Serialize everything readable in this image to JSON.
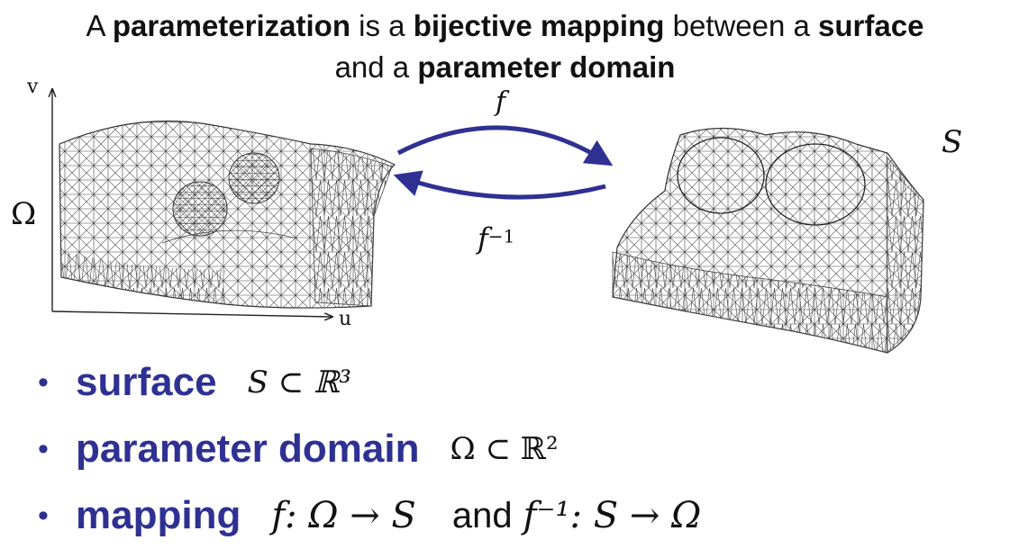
{
  "title": {
    "line1_a": "A ",
    "line1_b": "parameterization",
    "line1_c": " is a ",
    "line1_d": "bijective mapping",
    "line1_e": " between a ",
    "line1_f": "surface",
    "line2_a": "and a ",
    "line2_b": "parameter domain"
  },
  "diagram": {
    "axis_v": "v",
    "axis_u": "u",
    "omega": "Ω",
    "s": "S",
    "f": "f",
    "f_inv_base": "f",
    "f_inv_exp": "−1",
    "arrow_color": "#2e3192"
  },
  "bullets": [
    {
      "term": "surface",
      "expr": "S ⊂ ℝ³"
    },
    {
      "term": "parameter domain",
      "expr": "Ω ⊂ ℝ²"
    },
    {
      "term": "mapping",
      "expr1": "f: Ω → S",
      "and": "and",
      "expr2": "f⁻¹: S → Ω"
    }
  ],
  "bullet_char": "•"
}
